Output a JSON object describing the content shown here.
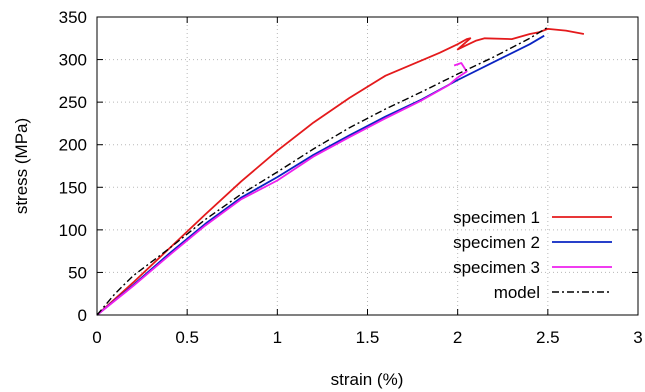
{
  "chart_data": {
    "type": "line",
    "title": "",
    "xlabel": "strain (%)",
    "ylabel": "stress (MPa)",
    "xlim": [
      0,
      3
    ],
    "ylim": [
      0,
      350
    ],
    "xticks": [
      0,
      0.5,
      1,
      1.5,
      2,
      2.5,
      3
    ],
    "xtick_labels": [
      "0",
      "0.5",
      "1",
      "1.5",
      "2",
      "2.5",
      "3"
    ],
    "yticks": [
      0,
      50,
      100,
      150,
      200,
      250,
      300,
      350
    ],
    "ytick_labels": [
      "0",
      "50",
      "100",
      "150",
      "200",
      "250",
      "300",
      "350"
    ],
    "grid": true,
    "legend_position": "bottom-right",
    "series": [
      {
        "name": "specimen 1",
        "color": "#e41a1c",
        "style": "solid",
        "points": [
          [
            0,
            0
          ],
          [
            0.2,
            38
          ],
          [
            0.4,
            78
          ],
          [
            0.6,
            118
          ],
          [
            0.8,
            157
          ],
          [
            1.0,
            193
          ],
          [
            1.2,
            226
          ],
          [
            1.4,
            255
          ],
          [
            1.6,
            281
          ],
          [
            1.8,
            299
          ],
          [
            1.9,
            308
          ],
          [
            2.0,
            318
          ],
          [
            2.05,
            324
          ],
          [
            2.07,
            325
          ],
          [
            2.0,
            312
          ],
          [
            2.05,
            317
          ],
          [
            2.1,
            322
          ],
          [
            2.15,
            325
          ],
          [
            2.3,
            324
          ],
          [
            2.4,
            330
          ],
          [
            2.45,
            332
          ],
          [
            2.5,
            336
          ],
          [
            2.6,
            334
          ],
          [
            2.7,
            330
          ]
        ]
      },
      {
        "name": "specimen 2",
        "color": "#0a24c2",
        "style": "solid",
        "points": [
          [
            0,
            0
          ],
          [
            0.2,
            35
          ],
          [
            0.4,
            72
          ],
          [
            0.6,
            107
          ],
          [
            0.8,
            138
          ],
          [
            1.0,
            162
          ],
          [
            1.2,
            188
          ],
          [
            1.4,
            211
          ],
          [
            1.6,
            233
          ],
          [
            1.8,
            253
          ],
          [
            2.0,
            276
          ],
          [
            2.2,
            297
          ],
          [
            2.4,
            318
          ],
          [
            2.48,
            328
          ]
        ]
      },
      {
        "name": "specimen 3",
        "color": "#ee20ee",
        "style": "solid",
        "points": [
          [
            0,
            0
          ],
          [
            0.2,
            34
          ],
          [
            0.4,
            70
          ],
          [
            0.6,
            105
          ],
          [
            0.8,
            136
          ],
          [
            1.0,
            158
          ],
          [
            1.2,
            186
          ],
          [
            1.4,
            209
          ],
          [
            1.6,
            231
          ],
          [
            1.8,
            252
          ],
          [
            1.95,
            270
          ],
          [
            2.0,
            279
          ],
          [
            2.05,
            286
          ],
          [
            2.02,
            296
          ],
          [
            1.98,
            293
          ]
        ]
      },
      {
        "name": "model",
        "color": "#000000",
        "style": "dashdot",
        "points": [
          [
            0,
            0
          ],
          [
            0.1,
            25
          ],
          [
            0.2,
            46
          ],
          [
            0.4,
            78
          ],
          [
            0.6,
            112
          ],
          [
            0.8,
            142
          ],
          [
            1.0,
            168
          ],
          [
            1.2,
            195
          ],
          [
            1.4,
            220
          ],
          [
            1.6,
            242
          ],
          [
            1.8,
            262
          ],
          [
            2.0,
            283
          ],
          [
            2.2,
            303
          ],
          [
            2.4,
            325
          ],
          [
            2.5,
            338
          ]
        ]
      }
    ]
  }
}
